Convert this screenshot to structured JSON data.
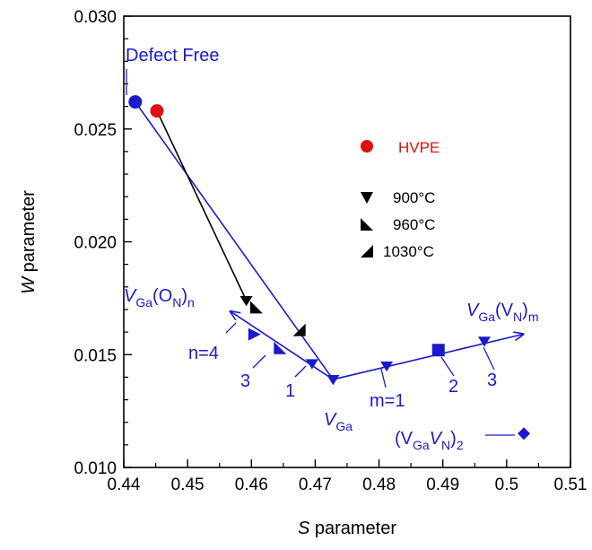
{
  "chart_data": {
    "type": "scatter",
    "xlabel_italic": "S",
    "xlabel_rest": " parameter",
    "ylabel_italic": "W",
    "ylabel_rest": " parameter",
    "xlim": [
      0.44,
      0.51
    ],
    "ylim": [
      0.01,
      0.03
    ],
    "x_ticks": [
      "0.44",
      "0.45",
      "0.46",
      "0.47",
      "0.48",
      "0.49",
      "0.5",
      "0.51"
    ],
    "y_ticks": [
      "0.010",
      "0.015",
      "0.020",
      "0.025",
      "0.030"
    ],
    "colors": {
      "blue": "#1a1acc",
      "red": "#e01010",
      "black": "#000000"
    },
    "defect_free": {
      "label": "Defect Free",
      "x": 0.4418,
      "y": 0.0262
    },
    "hvpe": {
      "label": "HVPE",
      "x": 0.4452,
      "y": 0.0258
    },
    "annealed": [
      {
        "label": "900°C",
        "marker": "triangle-down",
        "x": 0.4592,
        "y": 0.0174
      },
      {
        "label": "960°C",
        "marker": "triangle-br",
        "x": 0.4608,
        "y": 0.0171
      },
      {
        "label": "1030°C",
        "marker": "triangle-bl",
        "x": 0.4675,
        "y": 0.0161
      }
    ],
    "vga": {
      "x": 0.4728,
      "y": 0.0139
    },
    "vga_on_series": [
      {
        "n": "1",
        "x": 0.4695,
        "y": 0.0146
      },
      {
        "n": "2",
        "x": 0.4645,
        "y": 0.0153
      },
      {
        "n": "3",
        "x": 0.4605,
        "y": 0.0159
      },
      {
        "n": "4",
        "x": 0.4568,
        "y": 0.0169
      }
    ],
    "vga_vn_series": [
      {
        "m": "1",
        "x": 0.4812,
        "y": 0.0145
      },
      {
        "m": "2",
        "x": 0.4893,
        "y": 0.0152
      },
      {
        "m": "3",
        "x": 0.4965,
        "y": 0.0156
      },
      {
        "m": "4",
        "x": 0.5025,
        "y": 0.0159
      }
    ],
    "vgavn2": {
      "x": 0.5027,
      "y": 0.0115
    }
  },
  "labels": {
    "v": "V",
    "ga": "Ga",
    "on_paren_open": "(O",
    "n_sub": "N",
    "paren_close": ")",
    "n_subscript": "n",
    "vn_paren_open": "(V",
    "m_subscript": "m",
    "n4": "n=4",
    "n3": "3",
    "n1": "1",
    "m1": "m=1",
    "m2": "2",
    "m3": "3",
    "pair_open": "(V",
    "pair_v": "V",
    "pair_close": ")",
    "pair_sub": "2"
  }
}
